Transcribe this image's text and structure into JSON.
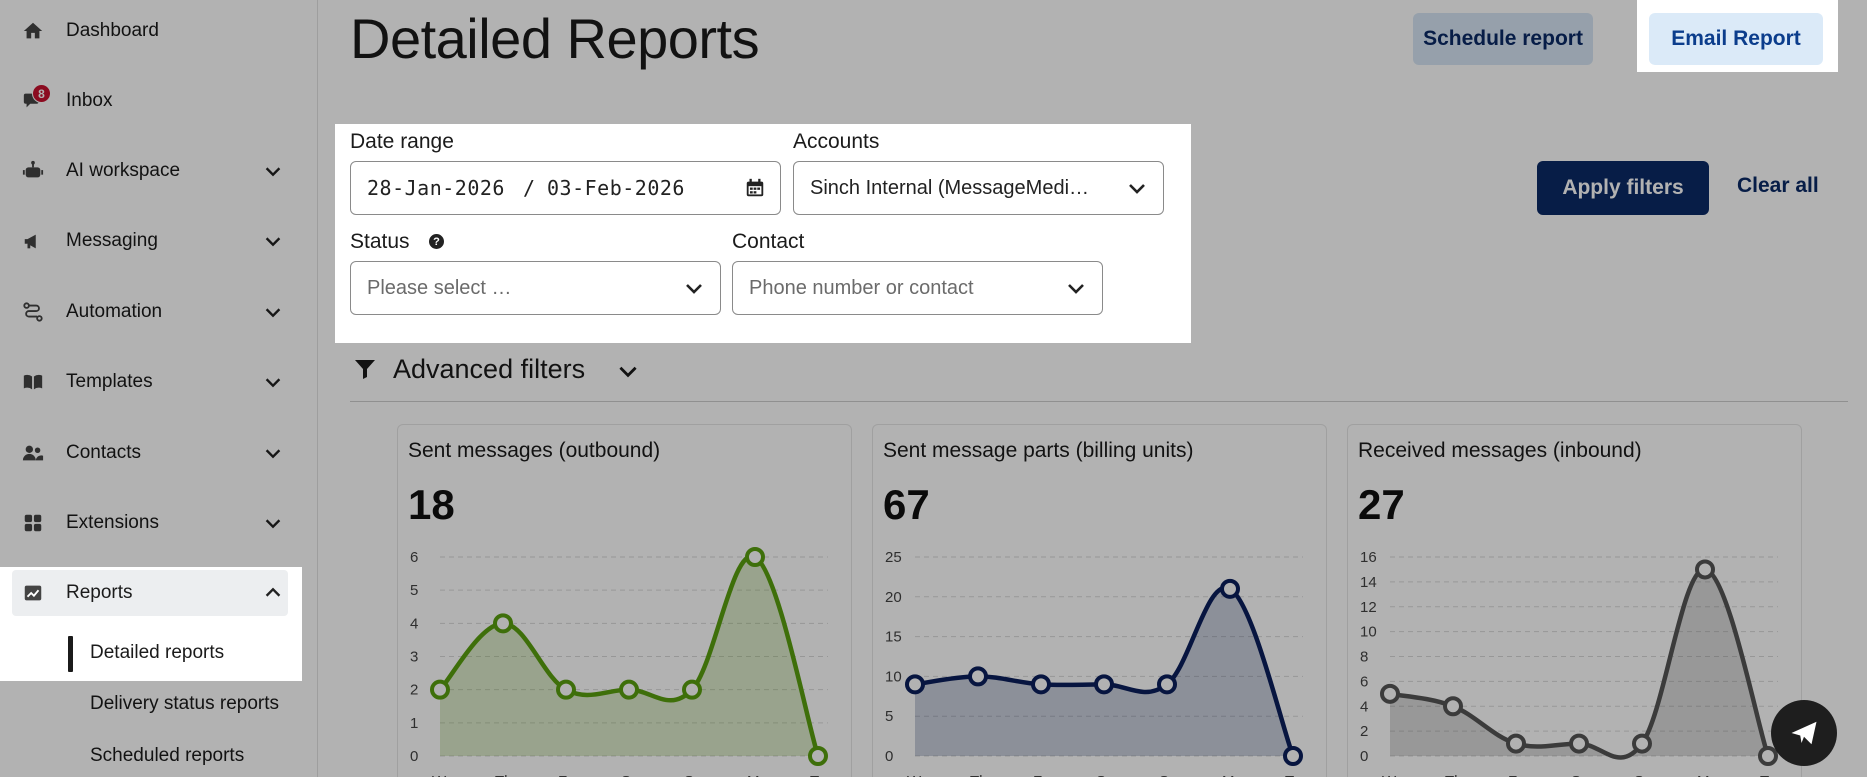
{
  "sidebar": {
    "items": [
      {
        "label": "Dashboard",
        "icon": "home-icon"
      },
      {
        "label": "Inbox",
        "icon": "chat-icon",
        "badge": "8"
      },
      {
        "label": "AI workspace",
        "icon": "robot-icon"
      },
      {
        "label": "Messaging",
        "icon": "megaphone-icon"
      },
      {
        "label": "Automation",
        "icon": "route-icon"
      },
      {
        "label": "Templates",
        "icon": "book-icon"
      },
      {
        "label": "Contacts",
        "icon": "users-icon"
      },
      {
        "label": "Extensions",
        "icon": "grid-icon"
      },
      {
        "label": "Reports",
        "icon": "chart-icon"
      }
    ],
    "reports_sub": [
      "Detailed reports",
      "Delivery status reports",
      "Scheduled reports"
    ]
  },
  "header": {
    "title": "Detailed Reports",
    "schedule_label": "Schedule report",
    "email_label": "Email Report"
  },
  "filters": {
    "date_range_label": "Date range",
    "date_start": "28-Jan-2026",
    "date_sep": "/",
    "date_end": "03-Feb-2026",
    "accounts_label": "Accounts",
    "accounts_value": "Sinch Internal (MessageMedi…",
    "status_label": "Status",
    "status_placeholder": "Please select …",
    "contact_label": "Contact",
    "contact_placeholder": "Phone number or contact",
    "apply_label": "Apply filters",
    "clear_label": "Clear all",
    "advanced_label": "Advanced filters"
  },
  "cards": [
    {
      "title": "Sent messages (outbound)",
      "value": "18"
    },
    {
      "title": "Sent message parts (billing units)",
      "value": "67"
    },
    {
      "title": "Received messages (inbound)",
      "value": "27"
    }
  ],
  "chart_data": [
    {
      "type": "area",
      "title": "Sent messages (outbound)",
      "x": [
        "We",
        "Th",
        "Fr",
        "Sa",
        "Su",
        "Mo",
        "Tu"
      ],
      "series": [
        {
          "values": [
            2,
            4,
            2,
            2,
            2,
            6,
            0
          ],
          "color": "#5aa00f"
        }
      ],
      "ylim": [
        0,
        6
      ],
      "yticks": [
        "0",
        "1",
        "2",
        "3",
        "4",
        "5",
        "6"
      ],
      "grid": true
    },
    {
      "type": "area",
      "title": "Sent message parts (billing units)",
      "x": [
        "We",
        "Th",
        "Fr",
        "Sa",
        "Su",
        "Mo",
        "Tu"
      ],
      "series": [
        {
          "values": [
            9,
            10,
            9,
            9,
            9,
            21,
            0
          ],
          "color": "#0b1f5c"
        }
      ],
      "ylim": [
        0,
        25
      ],
      "yticks": [
        "0",
        "5",
        "10",
        "15",
        "20",
        "25"
      ],
      "grid": true
    },
    {
      "type": "area",
      "title": "Received messages (inbound)",
      "x": [
        "We",
        "Th",
        "Fr",
        "Sa",
        "Su",
        "Mo",
        "Tu"
      ],
      "series": [
        {
          "values": [
            5,
            4,
            1,
            1,
            1,
            15,
            0
          ],
          "color": "#555555"
        }
      ],
      "ylim": [
        0,
        16
      ],
      "yticks": [
        "0",
        "2",
        "4",
        "6",
        "8",
        "10",
        "12",
        "14",
        "16"
      ],
      "grid": true
    }
  ],
  "colors": {
    "primary": "#0b2a66",
    "badge": "#c8102e",
    "accent_green": "#5aa00f"
  }
}
